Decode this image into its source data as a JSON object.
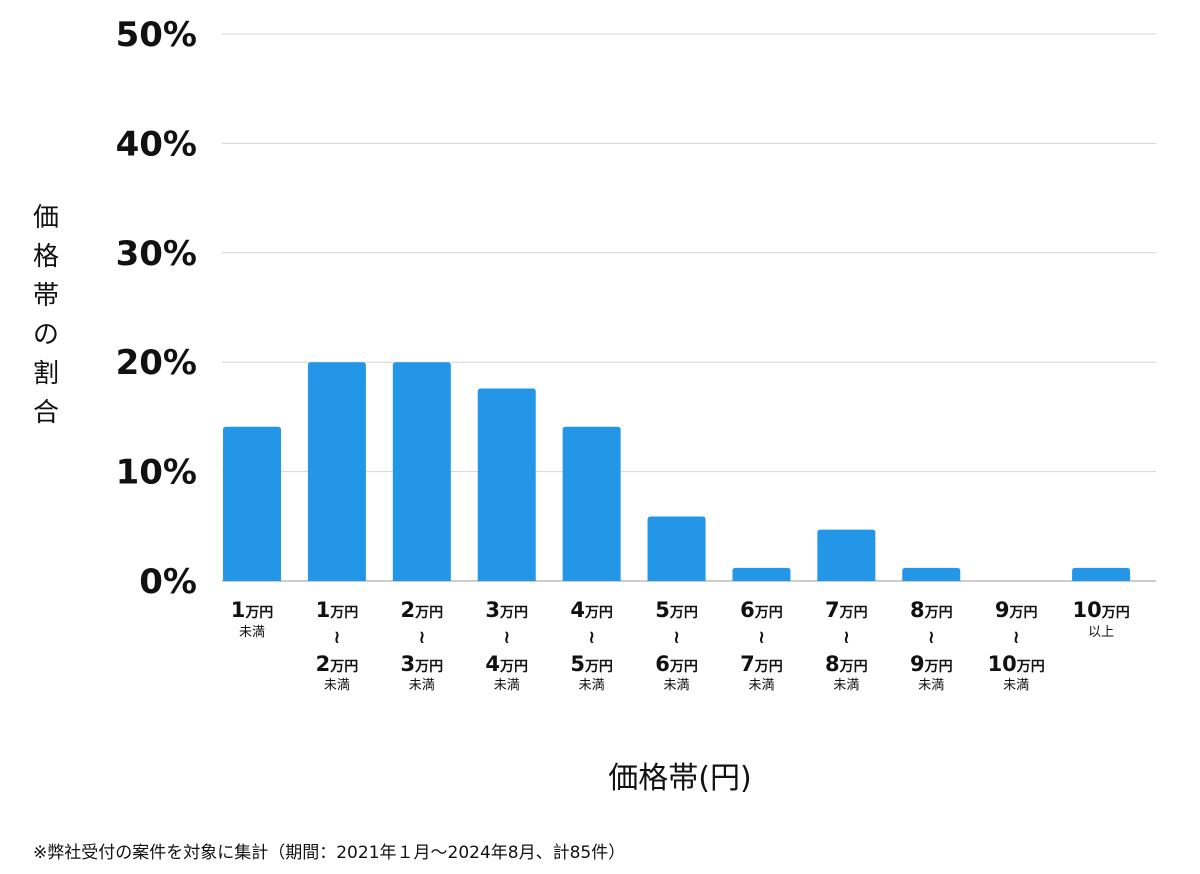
{
  "chart_data": {
    "type": "bar",
    "ylabel": "価格帯の割合",
    "xlabel": "価格帯(円)",
    "ylim": [
      0,
      50
    ],
    "yticks": [
      "0%",
      "10%",
      "20%",
      "30%",
      "40%",
      "50%"
    ],
    "grid": true,
    "color": "#2496e8",
    "categories": [
      {
        "top": "1",
        "top_unit": "万円",
        "bottom": "",
        "bottom_unit": "",
        "suffix": "未満"
      },
      {
        "top": "1",
        "top_unit": "万円",
        "bottom": "2",
        "bottom_unit": "万円",
        "suffix": "未満"
      },
      {
        "top": "2",
        "top_unit": "万円",
        "bottom": "3",
        "bottom_unit": "万円",
        "suffix": "未満"
      },
      {
        "top": "3",
        "top_unit": "万円",
        "bottom": "4",
        "bottom_unit": "万円",
        "suffix": "未満"
      },
      {
        "top": "4",
        "top_unit": "万円",
        "bottom": "5",
        "bottom_unit": "万円",
        "suffix": "未満"
      },
      {
        "top": "5",
        "top_unit": "万円",
        "bottom": "6",
        "bottom_unit": "万円",
        "suffix": "未満"
      },
      {
        "top": "6",
        "top_unit": "万円",
        "bottom": "7",
        "bottom_unit": "万円",
        "suffix": "未満"
      },
      {
        "top": "7",
        "top_unit": "万円",
        "bottom": "8",
        "bottom_unit": "万円",
        "suffix": "未満"
      },
      {
        "top": "8",
        "top_unit": "万円",
        "bottom": "9",
        "bottom_unit": "万円",
        "suffix": "未満"
      },
      {
        "top": "9",
        "top_unit": "万円",
        "bottom": "10",
        "bottom_unit": "万円",
        "suffix": "未満"
      },
      {
        "top": "10",
        "top_unit": "万円",
        "bottom": "",
        "bottom_unit": "",
        "suffix": "以上"
      }
    ],
    "tilde": "≀",
    "values": [
      14.1,
      20.0,
      20.0,
      17.6,
      14.1,
      5.9,
      1.2,
      4.7,
      1.2,
      0,
      1.2
    ]
  },
  "footnote": "※弊社受付の案件を対象に集計（期間：2021年１月～2024年8月、計85件）"
}
